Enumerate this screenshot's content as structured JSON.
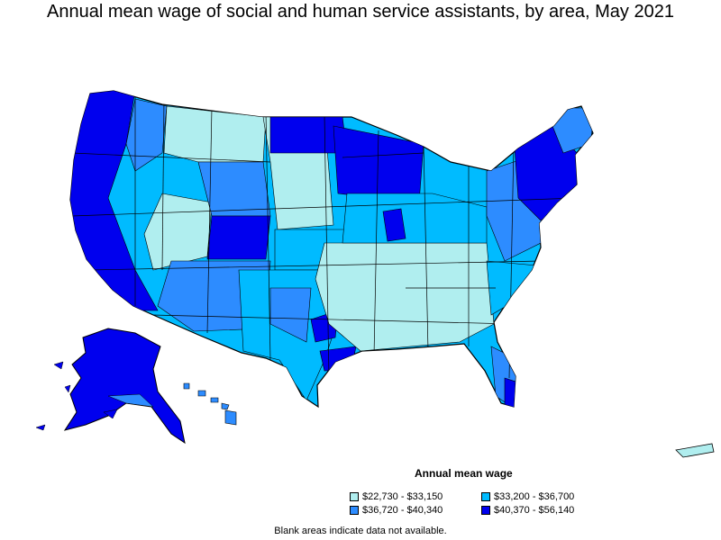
{
  "title": "Annual mean wage of social and human service assistants, by area, May 2021",
  "legend": {
    "title": "Annual mean wage",
    "items": [
      {
        "label": "$22,730 - $33,150",
        "color": "#b0eeef"
      },
      {
        "label": "$33,200 - $36,700",
        "color": "#00bbff"
      },
      {
        "label": "$36,720 - $40,340",
        "color": "#2d8cff"
      },
      {
        "label": "$40,370 - $56,140",
        "color": "#0000ee"
      }
    ]
  },
  "note": "Blank areas indicate data not available.",
  "colors": {
    "outline": "#000000",
    "background": "#ffffff"
  }
}
